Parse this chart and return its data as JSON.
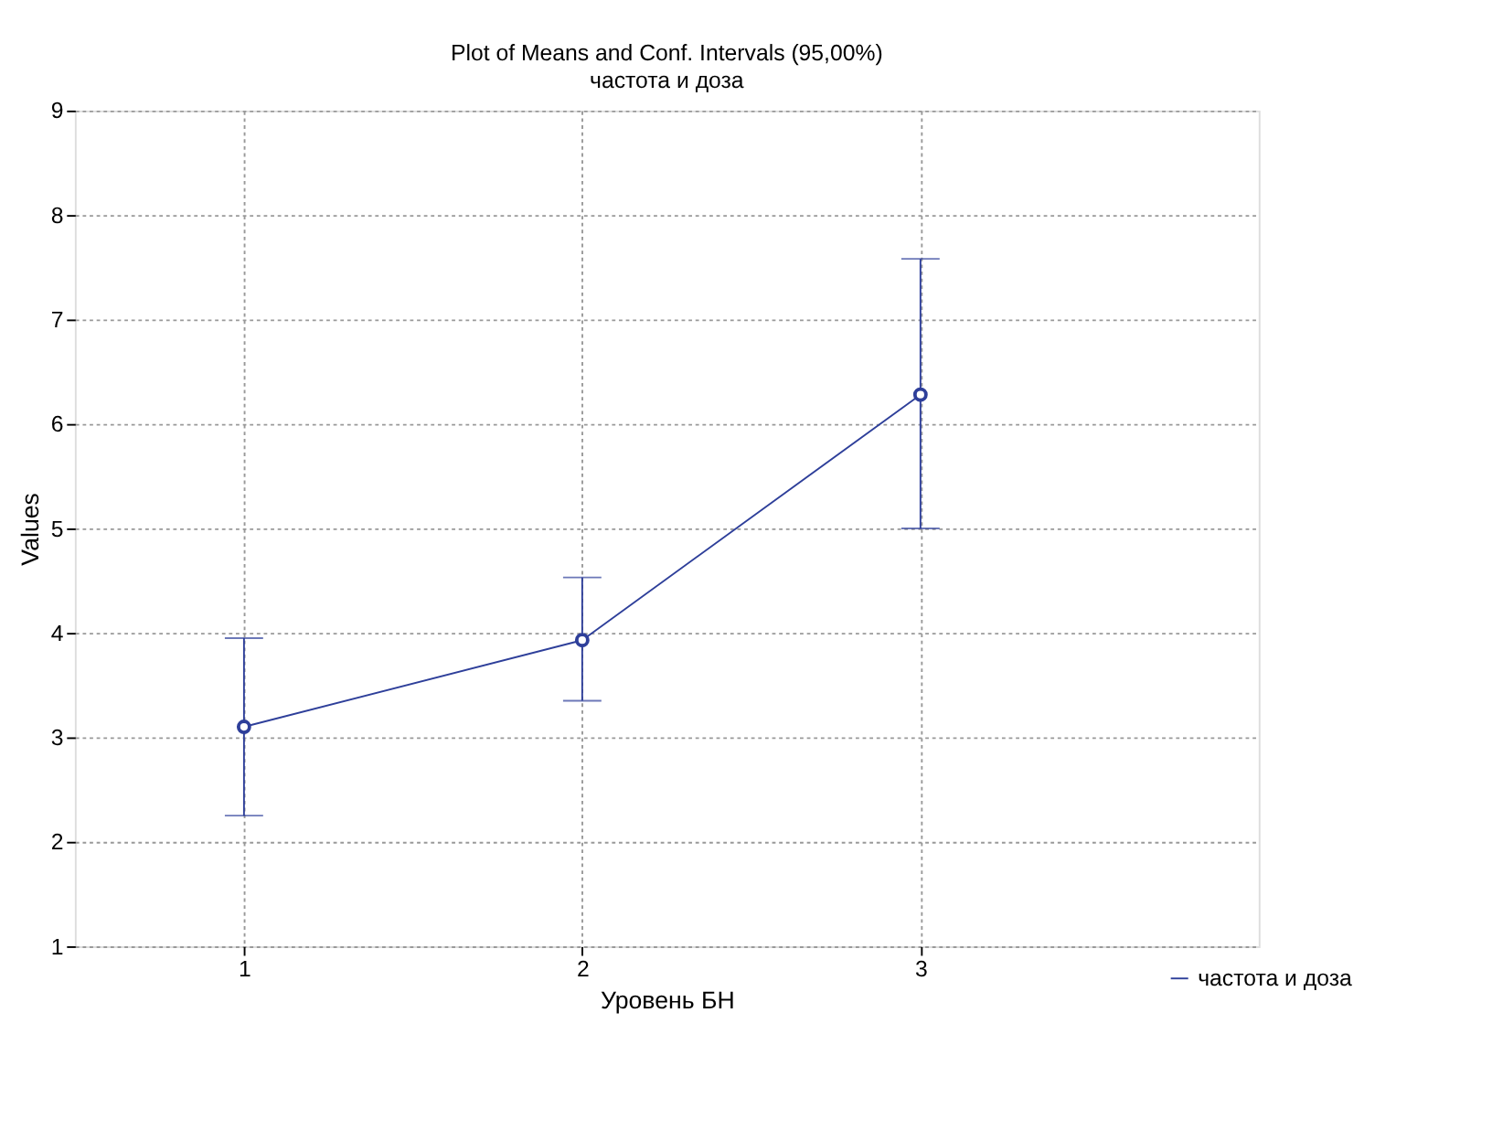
{
  "chart_data": {
    "type": "line",
    "title": "Plot of Means and Conf. Intervals (95,00%)",
    "subtitle": "частота и доза",
    "xlabel": "Уровень БН",
    "ylabel": "Values",
    "x": [
      1,
      2,
      3
    ],
    "xlim": [
      0.5,
      4
    ],
    "xticks": [
      1,
      2,
      3
    ],
    "ylim": [
      1,
      9
    ],
    "yticks": [
      1,
      2,
      3,
      4,
      5,
      6,
      7,
      8,
      9
    ],
    "series": [
      {
        "name": "частота и доза",
        "color": "#2e3f9a",
        "values": [
          3.1,
          3.93,
          6.28
        ],
        "errors": [
          [
            2.25,
            3.95
          ],
          [
            3.35,
            4.53
          ],
          [
            5.0,
            7.58
          ]
        ]
      }
    ],
    "marker": "circle",
    "line_style": "solid",
    "grid": true,
    "legend": "bottom right"
  }
}
